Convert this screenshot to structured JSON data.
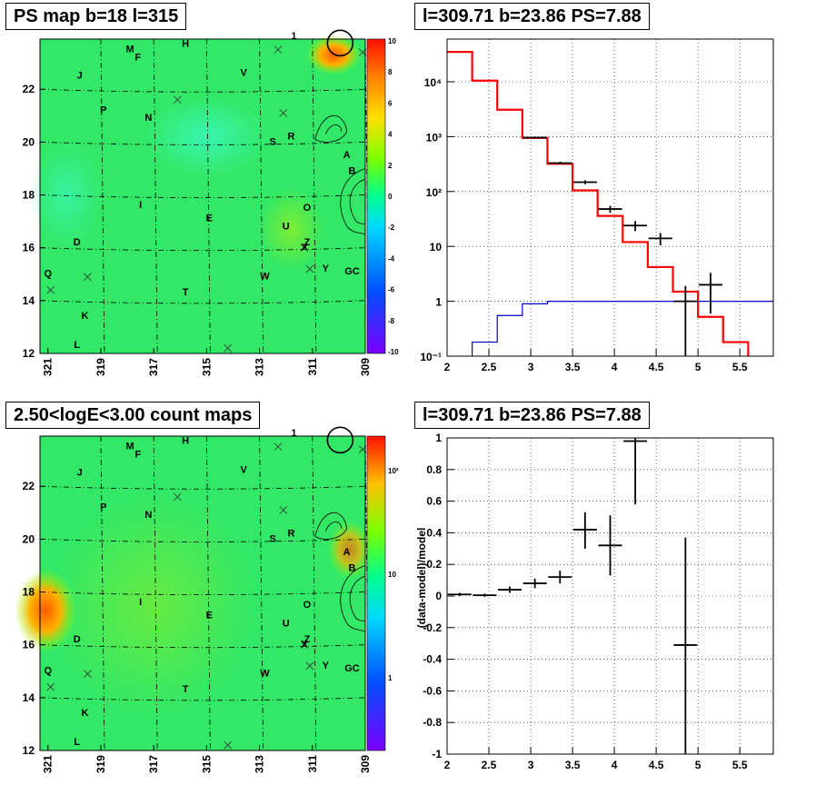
{
  "panels": {
    "tl_title": "PS map b=18 l=315",
    "tr_title": "l=309.71 b=23.86 PS=7.88",
    "bl_title": "2.50<logE<3.00 count maps",
    "br_title": "l=309.71 b=23.86 PS=7.88"
  },
  "colors": {
    "map_green": "#33e866",
    "hist_red": "#ff0000",
    "hist_blue": "#0000cc",
    "grid": "#000000"
  },
  "map_axes": {
    "x_ticks": [
      "321",
      "319",
      "317",
      "315",
      "313",
      "311",
      "309"
    ],
    "y_ticks": [
      "12",
      "14",
      "16",
      "18",
      "20",
      "22"
    ],
    "tl_colorbar_ticks": [
      "10",
      "8",
      "6",
      "4",
      "2",
      "0",
      "-2",
      "-4",
      "-6",
      "-8",
      "-10"
    ],
    "bl_colorbar_ticks": [
      "10²",
      "10",
      "1"
    ]
  },
  "source_labels": [
    {
      "t": "M",
      "l": 317.9,
      "b": 23.4
    },
    {
      "t": "F",
      "l": 317.6,
      "b": 23.1
    },
    {
      "t": "H",
      "l": 315.8,
      "b": 23.6
    },
    {
      "t": "1",
      "l": 311.7,
      "b": 23.9
    },
    {
      "t": "J",
      "l": 319.8,
      "b": 22.4
    },
    {
      "t": "V",
      "l": 313.6,
      "b": 22.5
    },
    {
      "t": "P",
      "l": 318.9,
      "b": 21.1
    },
    {
      "t": "N",
      "l": 317.2,
      "b": 20.8
    },
    {
      "t": "S",
      "l": 312.5,
      "b": 19.9
    },
    {
      "t": "R",
      "l": 311.8,
      "b": 20.1
    },
    {
      "t": "A",
      "l": 309.7,
      "b": 19.4
    },
    {
      "t": "B",
      "l": 309.5,
      "b": 18.8
    },
    {
      "t": "I",
      "l": 317.5,
      "b": 17.5
    },
    {
      "t": "E",
      "l": 314.9,
      "b": 17.0
    },
    {
      "t": "O",
      "l": 311.2,
      "b": 17.4
    },
    {
      "t": "U",
      "l": 312.0,
      "b": 16.7
    },
    {
      "t": "Z",
      "l": 311.2,
      "b": 16.1
    },
    {
      "t": "X",
      "l": 311.3,
      "b": 15.9
    },
    {
      "t": "D",
      "l": 319.9,
      "b": 16.1
    },
    {
      "t": "Q",
      "l": 321.0,
      "b": 14.9
    },
    {
      "t": "Y",
      "l": 310.5,
      "b": 15.1
    },
    {
      "t": "GC",
      "l": 309.5,
      "b": 15.0
    },
    {
      "t": "W",
      "l": 312.8,
      "b": 14.8
    },
    {
      "t": "T",
      "l": 315.8,
      "b": 14.2
    },
    {
      "t": "K",
      "l": 319.6,
      "b": 13.3
    },
    {
      "t": "L",
      "l": 319.9,
      "b": 12.2
    }
  ],
  "chart_data": [
    {
      "type": "line",
      "title": "l=309.71 b=23.86 PS=7.88",
      "xlim": [
        2,
        5.9
      ],
      "ylim": [
        0.1,
        60000
      ],
      "log_y": true,
      "x_ticks": [
        "2",
        "2.5",
        "3",
        "3.5",
        "4",
        "4.5",
        "5",
        "5.5"
      ],
      "y_ticks": [
        "10⁻¹",
        "1",
        "10",
        "10²",
        "10³",
        "10⁴"
      ],
      "grid": true,
      "series": [
        {
          "kind": "step",
          "color": "#ff0000",
          "edges": [
            2.0,
            2.3,
            2.6,
            2.9,
            3.2,
            3.5,
            3.8,
            4.1,
            4.4,
            4.7,
            5.0,
            5.3,
            5.6,
            5.9
          ],
          "values": [
            35000,
            10500,
            3100,
            950,
            320,
            105,
            36,
            12,
            4.2,
            1.5,
            0.52,
            0.18,
            0.08
          ]
        },
        {
          "kind": "step",
          "color": "#0000cc",
          "edges": [
            2.0,
            2.3,
            2.6,
            2.9,
            3.2,
            3.5,
            3.8,
            4.1,
            4.4,
            4.7,
            5.0,
            5.3,
            5.6,
            5.9
          ],
          "values": [
            0.05,
            0.18,
            0.55,
            0.9,
            1.0,
            1.0,
            1.0,
            1.0,
            1.0,
            1.0,
            1.0,
            1.0,
            1.0
          ]
        },
        {
          "kind": "points",
          "color": "#000000",
          "points": [
            {
              "x": 3.05,
              "y": 960,
              "ylo": 930,
              "yhi": 990
            },
            {
              "x": 3.35,
              "y": 330,
              "ylo": 312,
              "yhi": 348
            },
            {
              "x": 3.65,
              "y": 148,
              "ylo": 136,
              "yhi": 160
            },
            {
              "x": 3.95,
              "y": 48,
              "ylo": 41,
              "yhi": 55
            },
            {
              "x": 4.25,
              "y": 24,
              "ylo": 19,
              "yhi": 29
            },
            {
              "x": 4.55,
              "y": 14,
              "ylo": 10.5,
              "yhi": 17.5
            },
            {
              "x": 4.85,
              "y": 1.0,
              "ylo": 0.1,
              "yhi": 1.9
            },
            {
              "x": 5.15,
              "y": 2.0,
              "ylo": 0.6,
              "yhi": 3.3
            }
          ]
        }
      ]
    },
    {
      "type": "scatter",
      "title": "l=309.71 b=23.86 PS=7.88",
      "ylabel": "(data-model)/model",
      "xlim": [
        2,
        5.9
      ],
      "ylim": [
        -1,
        1
      ],
      "x_ticks": [
        "2",
        "2.5",
        "3",
        "3.5",
        "4",
        "4.5",
        "5",
        "5.5"
      ],
      "y_ticks": [
        "-1",
        "-0.8",
        "-0.6",
        "-0.4",
        "-0.2",
        "0",
        "0.2",
        "0.4",
        "0.6",
        "0.8",
        "1"
      ],
      "grid": true,
      "series": [
        {
          "kind": "points",
          "color": "#000000",
          "points": [
            {
              "x": 2.15,
              "y": 0.01,
              "ylo": 0.0,
              "yhi": 0.02
            },
            {
              "x": 2.45,
              "y": 0.005,
              "ylo": -0.005,
              "yhi": 0.015
            },
            {
              "x": 2.75,
              "y": 0.04,
              "ylo": 0.02,
              "yhi": 0.06
            },
            {
              "x": 3.05,
              "y": 0.08,
              "ylo": 0.05,
              "yhi": 0.11
            },
            {
              "x": 3.35,
              "y": 0.12,
              "ylo": 0.08,
              "yhi": 0.16
            },
            {
              "x": 3.65,
              "y": 0.42,
              "ylo": 0.3,
              "yhi": 0.53
            },
            {
              "x": 3.95,
              "y": 0.32,
              "ylo": 0.13,
              "yhi": 0.51
            },
            {
              "x": 4.25,
              "y": 0.98,
              "ylo": 0.58,
              "yhi": 1.0
            },
            {
              "x": 4.85,
              "y": -0.31,
              "ylo": -1.0,
              "yhi": 0.37
            }
          ]
        }
      ]
    }
  ]
}
